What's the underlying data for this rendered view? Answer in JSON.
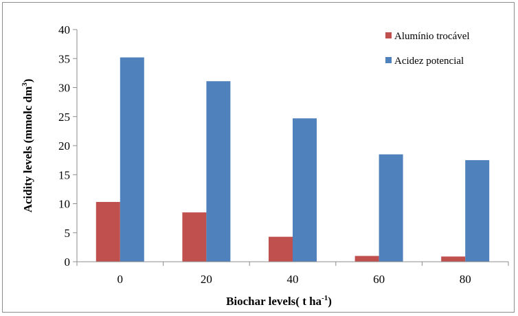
{
  "chart_data": {
    "type": "bar",
    "categories": [
      "0",
      "20",
      "40",
      "60",
      "80"
    ],
    "series": [
      {
        "name": "Alumínio trocável",
        "values": [
          10.3,
          8.5,
          4.3,
          1.0,
          0.9
        ],
        "color": "#c0504d"
      },
      {
        "name": "Acidez potencial",
        "values": [
          35.2,
          31.1,
          24.7,
          18.5,
          17.5
        ],
        "color": "#4f81bd"
      }
    ],
    "yticks": [
      "0",
      "5",
      "10",
      "15",
      "20",
      "25",
      "30",
      "35",
      "40"
    ],
    "ylim": [
      0,
      40
    ],
    "xlabel": {
      "main": "Biochar levels( t ha",
      "sup": "-1",
      "end": ")"
    },
    "ylabel": {
      "main": "Acidity levels (mmolc dm",
      "sup": "3",
      "end": ")"
    },
    "legend_position": "top-right",
    "grid": false
  }
}
